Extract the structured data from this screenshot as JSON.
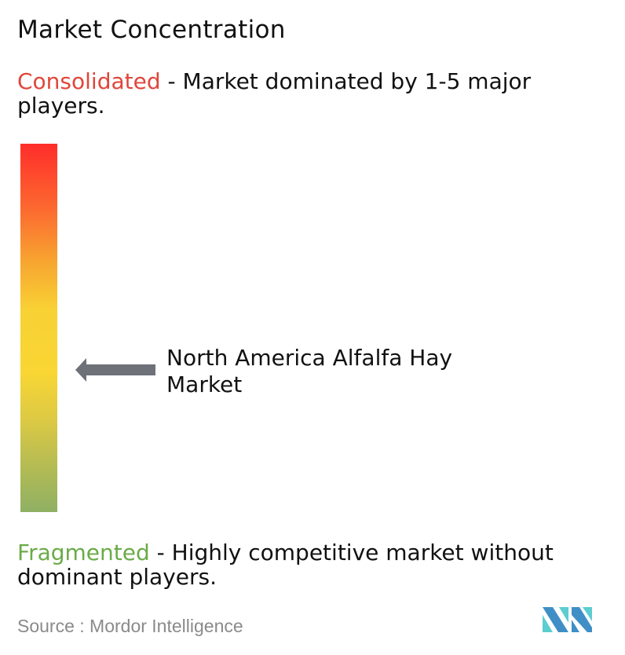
{
  "title": "Market Concentration",
  "consolidated": {
    "label": "Consolidated",
    "description": " - Market dominated by 1-5 major players.",
    "color": "#e0463a"
  },
  "fragmented": {
    "label": "Fragmented",
    "description": " - Highly competitive market without dominant players.",
    "color": "#6aab48"
  },
  "scale": {
    "top_color": "#ff2d2a",
    "middle_color": "#f9d634",
    "bottom_color": "#8fb063"
  },
  "market": {
    "name": "North America Alfalfa Hay Market",
    "position_from_bottom": 0.39,
    "arrow_icon": "arrow-left-icon",
    "arrow_color": "#6e7178"
  },
  "source": "Source :  Mordor Intelligence",
  "logo": {
    "text": "Mordor Intelligence",
    "colors": [
      "#3f8fc6",
      "#5ccdd0"
    ]
  }
}
